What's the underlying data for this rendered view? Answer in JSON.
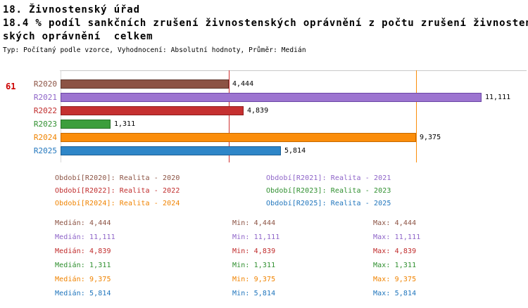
{
  "header": {
    "title": "18. Živnostenský úřad",
    "subtitle_line1": "18.4 % podíl sankčních zrušení živnostenských oprávnění z počtu zrušení živnosten",
    "subtitle_line2": "ských oprávnění  celkem",
    "meta": "Typ: Počítaný podle vzorce, Vyhodnocení: Absolutní hodnoty, Průměr: Medián"
  },
  "row_number": "61",
  "chart_data": {
    "type": "bar",
    "orientation": "horizontal",
    "title": "18.4 % podíl sankčních zrušení živnostenských oprávnění z počtu zrušení živnostenských oprávnění celkem",
    "categories": [
      "R2020",
      "R2021",
      "R2022",
      "R2023",
      "R2024",
      "R2025"
    ],
    "values": [
      4444,
      11111,
      4839,
      1311,
      9375,
      5814
    ],
    "value_labels": [
      "4,444",
      "11,111",
      "4,839",
      "1,311",
      "9,375",
      "5,814"
    ],
    "series_colors": [
      {
        "fill": "#8C5344",
        "border": "#5E372C",
        "text": "#8C5344"
      },
      {
        "fill": "#9C74D0",
        "border": "#6B46A5",
        "text": "#8E64C8"
      },
      {
        "fill": "#C53030",
        "border": "#8E1C1C",
        "text": "#C02B2B"
      },
      {
        "fill": "#3C9E3C",
        "border": "#257025",
        "text": "#2F8F2F"
      },
      {
        "fill": "#FB8D0A",
        "border": "#C66A00",
        "text": "#F08300"
      },
      {
        "fill": "#2E86C8",
        "border": "#1B5E93",
        "text": "#2176BD"
      }
    ],
    "xlim": [
      0,
      11111
    ],
    "grid": "top-line-only",
    "legend_position": "below",
    "reference_lines": [
      {
        "value": 4444,
        "color": "#D03030"
      },
      {
        "value": 9375,
        "color": "#FB8D0A"
      }
    ]
  },
  "legend": [
    {
      "text": "Období[R2020]: Realita - 2020",
      "color": "#8C5344"
    },
    {
      "text": "Období[R2021]: Realita - 2021",
      "color": "#8E64C8"
    },
    {
      "text": "Období[R2022]: Realita - 2022",
      "color": "#C02B2B"
    },
    {
      "text": "Období[R2023]: Realita - 2023",
      "color": "#2F8F2F"
    },
    {
      "text": "Období[R2024]: Realita - 2024",
      "color": "#F08300"
    },
    {
      "text": "Období[R2025]: Realita - 2025",
      "color": "#2176BD"
    }
  ],
  "stats": [
    {
      "median": "Medián: 4,444",
      "min": "Min: 4,444",
      "max": "Max: 4,444",
      "color": "#8C5344"
    },
    {
      "median": "Medián: 11,111",
      "min": "Min: 11,111",
      "max": "Max: 11,111",
      "color": "#8E64C8"
    },
    {
      "median": "Medián: 4,839",
      "min": "Min: 4,839",
      "max": "Max: 4,839",
      "color": "#C02B2B"
    },
    {
      "median": "Medián: 1,311",
      "min": "Min: 1,311",
      "max": "Max: 1,311",
      "color": "#2F8F2F"
    },
    {
      "median": "Medián: 9,375",
      "min": "Min: 9,375",
      "max": "Max: 9,375",
      "color": "#F08300"
    },
    {
      "median": "Medián: 5,814",
      "min": "Min: 5,814",
      "max": "Max: 5,814",
      "color": "#2176BD"
    }
  ]
}
